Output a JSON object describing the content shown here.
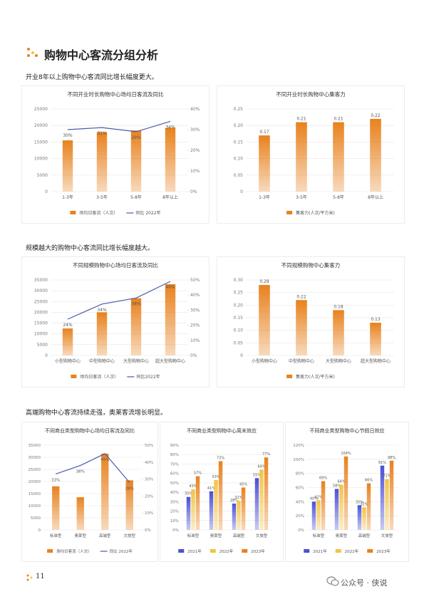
{
  "title": "购物中心客流分组分析",
  "captions": [
    "开业8年以上购物中心客流同比增长幅度更大。",
    "规模越大的购物中心客流同比增长幅度越大。",
    "高端购物中心客流持续走强，奥莱客流增长明显。"
  ],
  "page_number": "11",
  "watermark": "公众号 · 侠说",
  "chart_data": [
    {
      "type": "combo",
      "title": "不同开业时长购物中心场均日客流及同比",
      "categories": [
        "1-3年",
        "3-5年",
        "5-8年",
        "8年以上"
      ],
      "series": [
        {
          "name": "场均日客流（人次）",
          "type": "bar",
          "color": "#e8821e",
          "values": [
            15500,
            18000,
            18500,
            19300
          ]
        },
        {
          "name": "同比 2022年",
          "type": "line",
          "axis": "y2",
          "color": "#4a5aa8",
          "values": [
            30,
            31,
            29,
            34
          ],
          "value_labels": [
            "30%",
            "31%",
            "29%",
            "34%"
          ]
        }
      ],
      "ylim": [
        0,
        25000
      ],
      "yticks": [
        0,
        5000,
        10000,
        15000,
        20000,
        25000
      ],
      "y2lim": [
        0,
        40
      ],
      "y2ticks": [
        {
          "value": 0,
          "label": "0%"
        },
        {
          "value": 10,
          "label": "10%"
        },
        {
          "value": 20,
          "label": "20%"
        },
        {
          "value": 30,
          "label": "30%"
        },
        {
          "value": 40,
          "label": "40%"
        }
      ],
      "grid": true
    },
    {
      "type": "bar",
      "title": "不同开业时长购物中心集客力",
      "categories": [
        "1-3年",
        "3-5年",
        "5-8年",
        "8年以上"
      ],
      "series": [
        {
          "name": "集客力(人次/平方米)",
          "color": "#e8821e",
          "values": [
            0.17,
            0.21,
            0.21,
            0.22
          ]
        }
      ],
      "ylim": [
        0,
        0.25
      ],
      "yticks": [
        0,
        0.05,
        {
          "value": 0.1,
          "label": "0.10"
        },
        0.15,
        {
          "value": 0.2,
          "label": "0.20"
        },
        0.25
      ],
      "grid": true,
      "data_labels": true
    },
    {
      "type": "combo",
      "title": "不同规模购物中心场均日客流及同比",
      "categories": [
        "小型购物中心",
        "中型购物中心",
        "大型购物中心",
        "超大型购物中心"
      ],
      "series": [
        {
          "name": "场均日客流（人次）",
          "type": "bar",
          "color": "#e8821e",
          "values": [
            12500,
            20000,
            26500,
            33000
          ]
        },
        {
          "name": "同比2022年",
          "type": "line",
          "axis": "y2",
          "color": "#4a5aa8",
          "values": [
            24,
            34,
            38,
            49
          ],
          "value_labels": [
            "24%",
            "34%",
            "38%",
            "49%"
          ]
        }
      ],
      "ylim": [
        0,
        35000
      ],
      "yticks": [
        0,
        5000,
        10000,
        15000,
        20000,
        25000,
        30000,
        35000
      ],
      "y2lim": [
        0,
        50
      ],
      "y2ticks": [
        {
          "value": 0,
          "label": "0%"
        },
        {
          "value": 10,
          "label": "10%"
        },
        {
          "value": 20,
          "label": "20%"
        },
        {
          "value": 30,
          "label": "30%"
        },
        {
          "value": 40,
          "label": "40%"
        },
        {
          "value": 50,
          "label": "50%"
        }
      ],
      "grid": true
    },
    {
      "type": "bar",
      "title": "不同规模购物中心集客力",
      "categories": [
        "小型购物中心",
        "中型购物中心",
        "大型购物中心",
        "超大型购物中心"
      ],
      "series": [
        {
          "name": "集客力(人次/平方米)",
          "color": "#e8821e",
          "values": [
            0.28,
            0.22,
            0.18,
            0.13
          ]
        }
      ],
      "ylim": [
        0,
        0.3
      ],
      "yticks": [
        0,
        0.05,
        {
          "value": 0.1,
          "label": "0.10"
        },
        0.15,
        {
          "value": 0.2,
          "label": "0.20"
        },
        0.25,
        {
          "value": 0.3,
          "label": "0.30"
        }
      ],
      "grid": true,
      "data_labels": true
    },
    {
      "type": "combo",
      "title": "不同商业类型购物中心场均日客流及同比",
      "categories": [
        "标准型",
        "奥莱型",
        "高端型",
        "文旅型"
      ],
      "series": [
        {
          "name": "场均日客流（人次）",
          "type": "bar",
          "color": "#e8821e",
          "values": [
            18000,
            13500,
            31500,
            20500
          ]
        },
        {
          "name": "同比 2022年",
          "type": "line",
          "axis": "y2",
          "color": "#4a5aa8",
          "values": [
            33,
            38,
            45,
            28
          ],
          "value_labels": [
            "33%",
            "38%",
            "45%",
            "28%"
          ]
        }
      ],
      "ylim": [
        0,
        35000
      ],
      "yticks": [
        0,
        5000,
        10000,
        15000,
        20000,
        25000,
        30000,
        35000
      ],
      "y2lim": [
        0,
        50
      ],
      "y2ticks": [
        {
          "value": 0,
          "label": "0%"
        },
        {
          "value": 10,
          "label": "10%"
        },
        {
          "value": 20,
          "label": "20%"
        },
        {
          "value": 30,
          "label": "30%"
        },
        {
          "value": 40,
          "label": "40%"
        },
        {
          "value": 50,
          "label": "50%"
        }
      ],
      "grid": true
    },
    {
      "type": "bar",
      "title": "不同商业类型购物中心周末效应",
      "categories": [
        "标准型",
        "奥莱型",
        "高端型",
        "文旅型"
      ],
      "series": [
        {
          "name": "2021年",
          "color": "#4b4fd6",
          "values": [
            35,
            41,
            28,
            55
          ],
          "value_labels": [
            "35%",
            "41%",
            "28%",
            "55%"
          ]
        },
        {
          "name": "2022年",
          "color": "#f2c440",
          "values": [
            43,
            53,
            31,
            64
          ],
          "value_labels": [
            "43%",
            "53%",
            "31%",
            "64%"
          ]
        },
        {
          "name": "2023年",
          "color": "#e8821e",
          "values": [
            57,
            73,
            45,
            77
          ],
          "value_labels": [
            "57%",
            "73%",
            "45%",
            "77%"
          ]
        }
      ],
      "ylim": [
        0,
        90
      ],
      "yticks": [
        {
          "value": 0,
          "label": "0%"
        },
        {
          "value": 10,
          "label": "10%"
        },
        {
          "value": 20,
          "label": "20%"
        },
        {
          "value": 30,
          "label": "30%"
        },
        {
          "value": 40,
          "label": "40%"
        },
        {
          "value": 50,
          "label": "50%"
        },
        {
          "value": 60,
          "label": "60%"
        },
        {
          "value": 70,
          "label": "70%"
        },
        {
          "value": 80,
          "label": "80%"
        },
        {
          "value": 90,
          "label": "90%"
        }
      ],
      "grid": true
    },
    {
      "type": "bar",
      "title": "不同商业类型购物中心节假日效应",
      "categories": [
        "标准型",
        "奥莱型",
        "高端型",
        "文旅型"
      ],
      "series": [
        {
          "name": "2021年",
          "color": "#4b4fd6",
          "values": [
            40,
            58,
            35,
            91
          ],
          "value_labels": [
            "40%",
            "58%",
            "35%",
            "91%"
          ]
        },
        {
          "name": "2022年",
          "color": "#f2c440",
          "values": [
            42,
            64,
            32,
            72
          ],
          "value_labels": [
            "42%",
            "64%",
            "32%",
            "72%"
          ]
        },
        {
          "name": "2023年",
          "color": "#e8821e",
          "values": [
            69,
            104,
            66,
            98
          ],
          "value_labels": [
            "69%",
            "104%",
            "66%",
            "98%"
          ]
        }
      ],
      "ylim": [
        0,
        120
      ],
      "yticks": [
        {
          "value": 0,
          "label": "0%"
        },
        {
          "value": 20,
          "label": "20%"
        },
        {
          "value": 40,
          "label": "40%"
        },
        {
          "value": 60,
          "label": "60%"
        },
        {
          "value": 80,
          "label": "80%"
        },
        {
          "value": 100,
          "label": "100%"
        },
        {
          "value": 120,
          "label": "120%"
        }
      ],
      "grid": true
    }
  ]
}
